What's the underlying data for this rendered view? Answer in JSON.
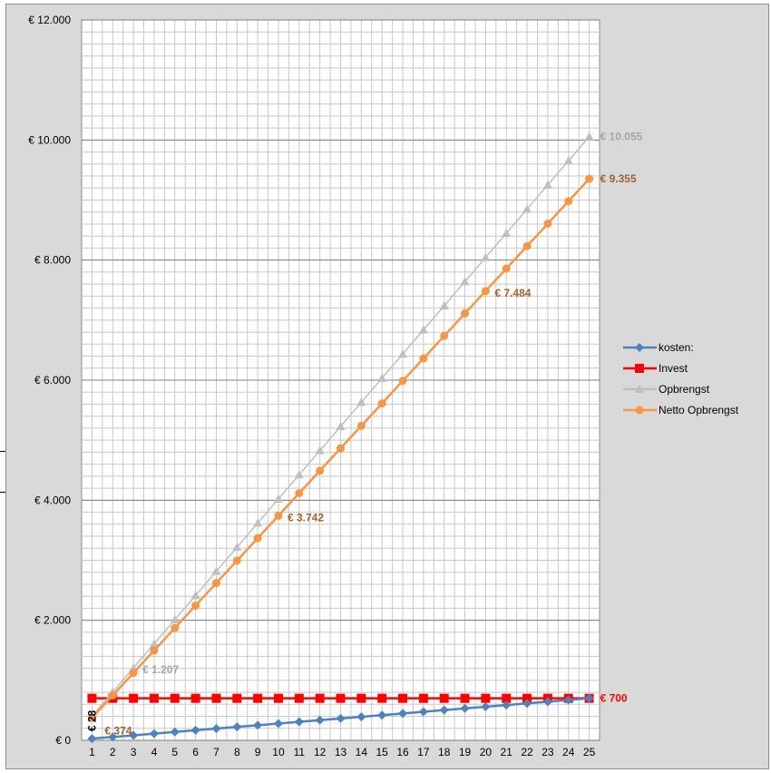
{
  "chart_data": {
    "type": "line",
    "x": [
      1,
      2,
      3,
      4,
      5,
      6,
      7,
      8,
      9,
      10,
      11,
      12,
      13,
      14,
      15,
      16,
      17,
      18,
      19,
      20,
      21,
      22,
      23,
      24,
      25
    ],
    "ylim": [
      0,
      12000
    ],
    "y_ticks": [
      0,
      2000,
      4000,
      6000,
      8000,
      10000,
      12000
    ],
    "y_tick_labels": [
      "€ 0",
      "€ 2.000",
      "€ 4.000",
      "€ 6.000",
      "€ 8.000",
      "€ 10.000",
      "€ 12.000"
    ],
    "grid": true,
    "legend_position": "right",
    "series": [
      {
        "name": "kosten:",
        "color": "#4f81bd",
        "marker": "diamond",
        "values": [
          28,
          56,
          84,
          112,
          140,
          168,
          196,
          224,
          252,
          280,
          308,
          336,
          364,
          392,
          420,
          448,
          476,
          504,
          532,
          560,
          588,
          616,
          644,
          672,
          700
        ]
      },
      {
        "name": "Invest",
        "color": "#ff0000",
        "marker": "square",
        "values": [
          700,
          700,
          700,
          700,
          700,
          700,
          700,
          700,
          700,
          700,
          700,
          700,
          700,
          700,
          700,
          700,
          700,
          700,
          700,
          700,
          700,
          700,
          700,
          700,
          700
        ]
      },
      {
        "name": "Opbrengst",
        "color": "#bfbfbf",
        "marker": "triangle",
        "values": [
          402,
          804,
          1207,
          1609,
          2011,
          2413,
          2815,
          3218,
          3620,
          4022,
          4424,
          4826,
          5229,
          5631,
          6033,
          6435,
          6837,
          7240,
          7642,
          8044,
          8446,
          8848,
          9251,
          9653,
          10055
        ]
      },
      {
        "name": "Netto Opbrengst",
        "color": "#f79646",
        "marker": "circle",
        "values": [
          374,
          748,
          1123,
          1497,
          1871,
          2245,
          2620,
          2994,
          3368,
          3742,
          4117,
          4491,
          4865,
          5239,
          5613,
          5988,
          6362,
          6736,
          7110,
          7484,
          7859,
          8233,
          8607,
          8981,
          9355
        ]
      }
    ],
    "data_labels": [
      {
        "series": "kosten:",
        "x": 1,
        "text": "€ 28",
        "color": "#000000",
        "rotated": true
      },
      {
        "series": "Netto Opbrengst",
        "x": 1,
        "text": "€ 374",
        "color": "#a0622b"
      },
      {
        "series": "Opbrengst",
        "x": 3,
        "text": "€ 1.207",
        "color": "#a6a6a6"
      },
      {
        "series": "Netto Opbrengst",
        "x": 10,
        "text": "€ 3.742",
        "color": "#a0622b"
      },
      {
        "series": "Netto Opbrengst",
        "x": 20,
        "text": "€ 7.484",
        "color": "#a0622b"
      },
      {
        "series": "Netto Opbrengst",
        "x": 25,
        "text": "€ 9.355",
        "color": "#a0622b"
      },
      {
        "series": "Opbrengst",
        "x": 25,
        "text": "€ 10.055",
        "color": "#a6a6a6"
      },
      {
        "series": "Invest",
        "x": 25,
        "text": "€ 700",
        "color": "#ff0000"
      }
    ]
  }
}
